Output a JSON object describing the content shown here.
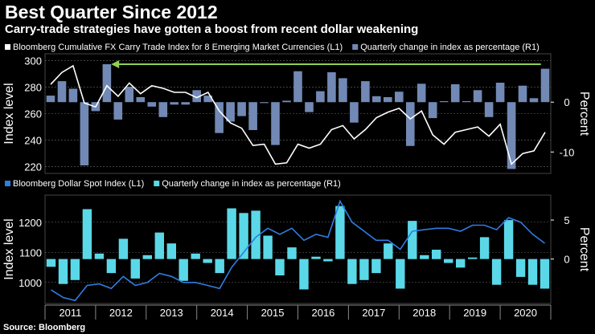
{
  "title": "Best Quarter Since 2012",
  "subtitle": "Carry-trade strategies have gotten a boost from recent dollar weakening",
  "source": "Source: Bloomberg",
  "colors": {
    "background": "#000000",
    "top_bars": "#7189b4",
    "bottom_bars": "#5ad8e8",
    "bottom_line": "#2f7de0",
    "top_line": "#ffffff",
    "arrow": "#8fd14f",
    "grid": "#6a6a6a"
  },
  "chart_data": [
    {
      "type": "bar",
      "panel": "top",
      "legend": [
        "Bloomberg Cumulative FX Carry Trade Index for 8 Emerging Market Currencies  (L1)",
        "Quarterly change in index as percentage (R1)"
      ],
      "ylabel_left": "Index level",
      "ylabel_right": "Percent",
      "ylim_left": [
        215,
        305
      ],
      "yticks_left": [
        220,
        240,
        260,
        280,
        300
      ],
      "ylim_right": [
        -14.3,
        9.7
      ],
      "yticks_right": [
        0,
        -10
      ],
      "bar_series": {
        "name": "Quarterly change in index as percentage (R1)",
        "values": [
          1.3,
          4.2,
          2.7,
          -12.7,
          -1.8,
          7.6,
          -3.5,
          3.1,
          1.0,
          -0.9,
          -3.0,
          -0.5,
          -0.5,
          2.4,
          1.3,
          -6.2,
          -3.9,
          -2.8,
          -5.6,
          -0.2,
          -8.6,
          0.3,
          6.2,
          -2.0,
          2.2,
          6.0,
          4.8,
          -4.1,
          4.2,
          1.2,
          1.0,
          2.1,
          -8.8,
          3.7,
          -3.2,
          0.2,
          3.6,
          0.2,
          2.4,
          -3.0,
          3.9,
          -13.4,
          3.3,
          0.8,
          6.7
        ]
      },
      "line_series": {
        "name": "Bloomberg Cumulative FX Carry Trade Index for 8 Emerging Market Currencies  (L1)",
        "values": [
          282,
          291,
          296,
          268,
          265,
          281,
          273,
          283,
          275,
          281,
          279,
          276,
          276,
          272,
          276,
          262,
          253,
          249,
          236,
          237,
          222,
          223,
          237,
          234,
          237,
          248,
          251,
          241,
          248,
          257,
          261,
          264,
          256,
          262,
          244,
          237,
          246,
          248,
          250,
          243,
          252,
          222,
          230,
          232,
          246
        ]
      },
      "annotation": "arrow from 2012 Q1 bar level to 2020 Q3 bar level"
    },
    {
      "type": "bar",
      "panel": "bottom",
      "legend": [
        "Bloomberg Dollar Spot Index (L1)",
        "Quarterly change in index as percentage (R1)"
      ],
      "ylabel_left": "Index level",
      "ylabel_right": "Percent",
      "ylim_left": [
        930,
        1290
      ],
      "yticks_left": [
        1000,
        1100,
        1200
      ],
      "ylim_right": [
        -5.7,
        8.2
      ],
      "yticks_right": [
        5,
        0
      ],
      "bar_series": {
        "name": "Quarterly change in index as percentage (R1)",
        "values": [
          -1.0,
          -3.2,
          -2.7,
          6.4,
          0.7,
          -1.8,
          2.6,
          -2.5,
          0.5,
          3.4,
          2.0,
          -2.8,
          0.7,
          -0.5,
          -1.8,
          6.5,
          5.9,
          6.2,
          3.0,
          -2.1,
          1.5,
          -3.9,
          0.3,
          -0.3,
          6.8,
          -3.2,
          -2.7,
          -1.8,
          2.0,
          -3.8,
          4.9,
          0.5,
          1.2,
          -0.5,
          -1.1,
          0.2,
          2.8,
          -3.3,
          5.0,
          -2.3,
          -3.3,
          -3.8
        ]
      },
      "line_series": {
        "name": "Bloomberg Dollar Spot Index (L1)",
        "values": [
          975,
          950,
          940,
          990,
          995,
          980,
          1020,
          990,
          1000,
          1030,
          1020,
          1000,
          1000,
          990,
          980,
          1050,
          1100,
          1150,
          1180,
          1160,
          1180,
          1140,
          1160,
          1150,
          1270,
          1200,
          1170,
          1140,
          1140,
          1110,
          1170,
          1175,
          1180,
          1180,
          1170,
          1190,
          1190,
          1175,
          1215,
          1200,
          1160,
          1130
        ]
      },
      "x_categories": [
        "2011",
        "2012",
        "2013",
        "2014",
        "2015",
        "2016",
        "2017",
        "2018",
        "2019",
        "2020"
      ]
    }
  ]
}
